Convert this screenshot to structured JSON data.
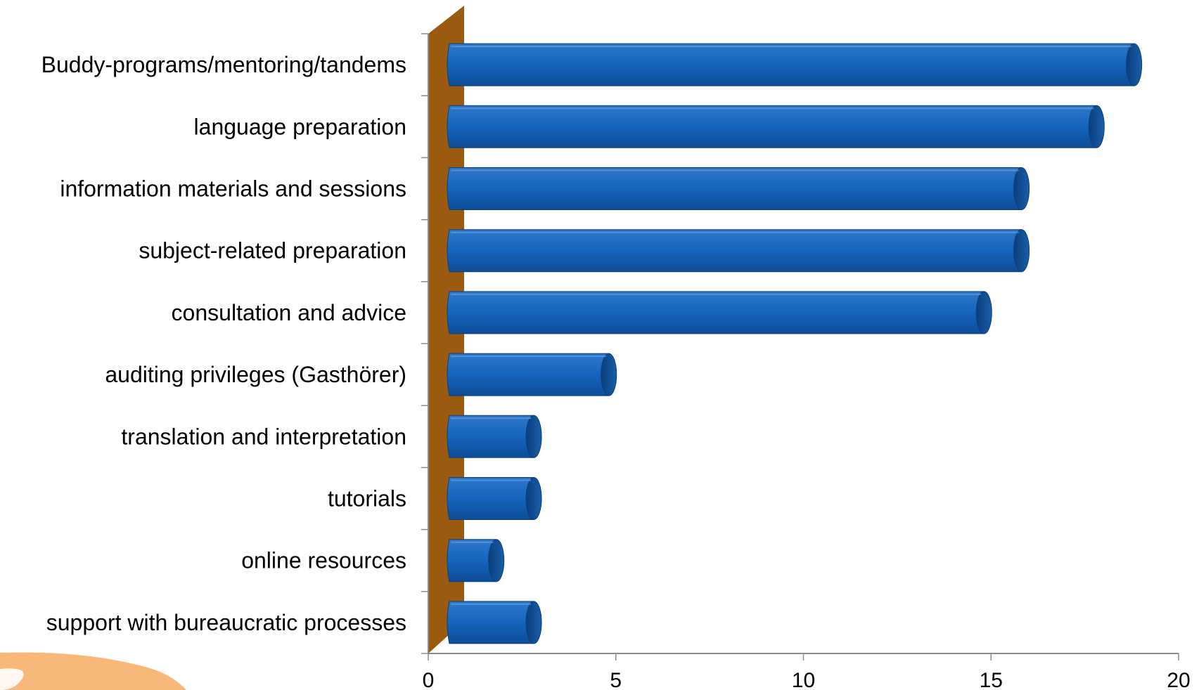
{
  "chart_data": {
    "type": "bar",
    "orientation": "horizontal",
    "categories": [
      "Buddy-programs/mentoring/tandems",
      "language preparation",
      "information materials and sessions",
      "subject-related preparation",
      "consultation and advice",
      "auditing privileges (Gasthörer)",
      "translation and interpretation",
      "tutorials",
      "online resources",
      "support with bureaucratic processes"
    ],
    "values": [
      19,
      18,
      16,
      16,
      15,
      5,
      3,
      3,
      2,
      3
    ],
    "x_ticks": [
      "0",
      "5",
      "10",
      "15",
      "20"
    ],
    "xlim": [
      0,
      20
    ],
    "title": "",
    "xlabel": "",
    "ylabel": "",
    "grid": false,
    "legend": "none",
    "style": "3d-cylinder",
    "colors": {
      "bar_light": "#2f78c8",
      "bar_mid": "#1666bf",
      "bar_dark": "#0d4d98",
      "bar_cap": "#0a3f7d",
      "side_wall": "#9a5a0f",
      "axis": "#8a8a8a",
      "decor": "#f7b06b"
    }
  }
}
